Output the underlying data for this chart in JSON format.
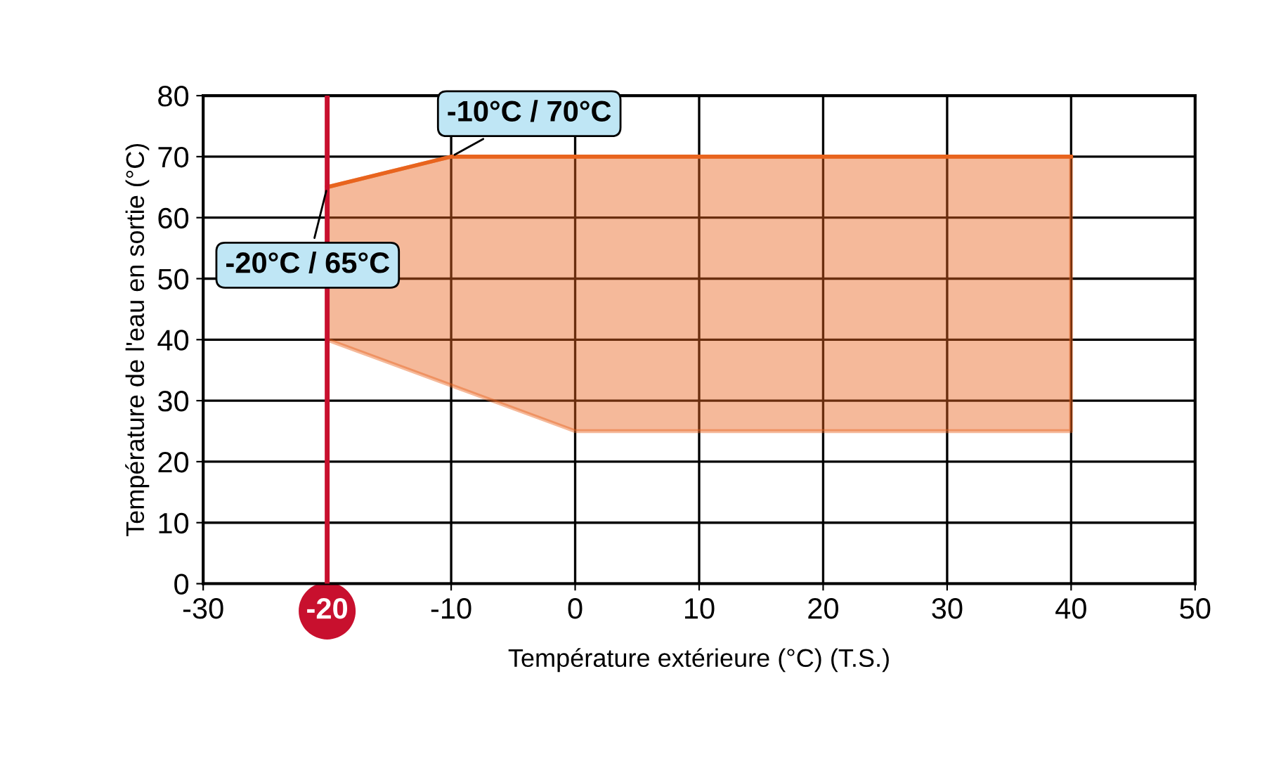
{
  "chart_data": {
    "type": "line",
    "xlabel": "Température extérieure (°C) (T.S.)",
    "ylabel": "Température de l'eau en sortie (°C)",
    "x": [
      -20,
      -10,
      0,
      40
    ],
    "series": [
      {
        "color": "#e8641e",
        "values": [
          65,
          70,
          70,
          70
        ],
        "lower": [
          40,
          32.5,
          25,
          25
        ],
        "upper": [
          65,
          70,
          70,
          70
        ]
      }
    ],
    "xlim": [
      -30,
      50
    ],
    "xticks": [
      -30,
      -20,
      -10,
      0,
      10,
      20,
      30,
      40,
      50
    ],
    "ylim": [
      0,
      80
    ],
    "yticks": [
      0,
      10,
      20,
      30,
      40,
      50,
      60,
      70,
      80
    ],
    "grid": true,
    "ref_lines": [
      {
        "axis": "x",
        "value": -20,
        "color": "#c8102e"
      }
    ],
    "annotations": [
      {
        "text": "-10°C / 70°C",
        "x": -10,
        "y": 70
      },
      {
        "text": "-20°C / 65°C",
        "x": -20,
        "y": 65
      }
    ]
  }
}
